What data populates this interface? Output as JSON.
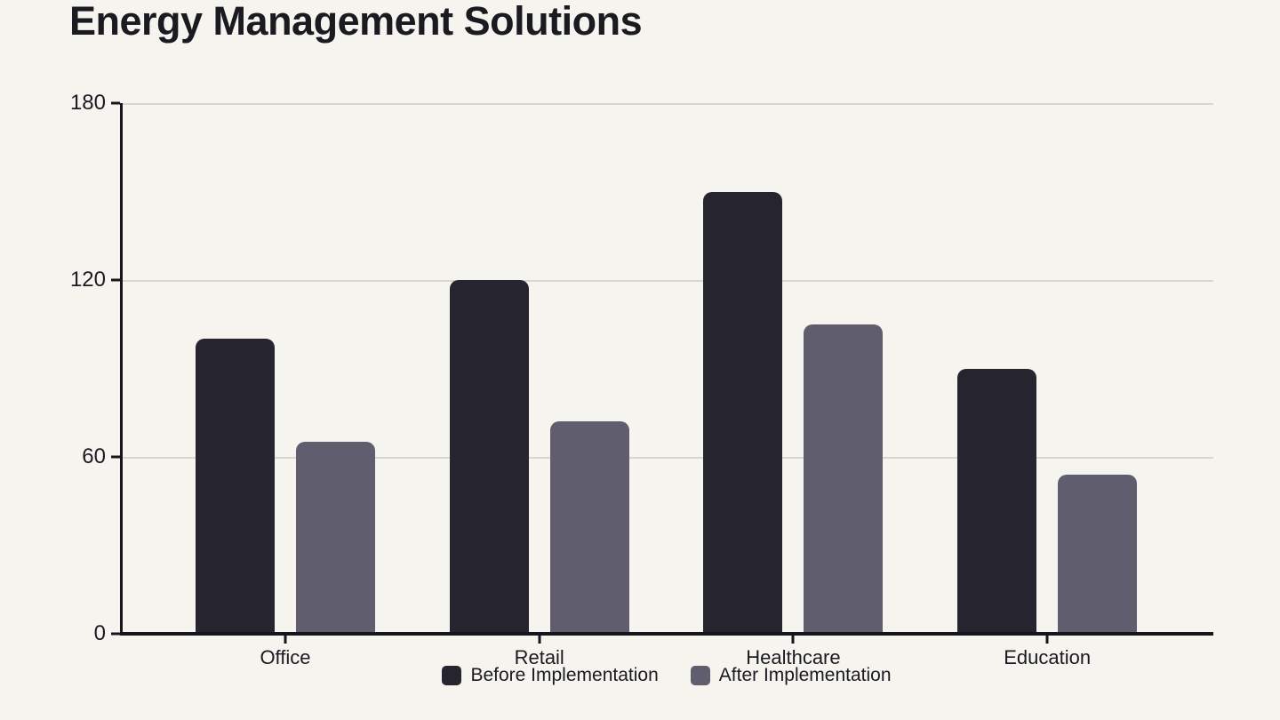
{
  "header": {
    "title": "Energy Management Solutions"
  },
  "colors": {
    "background": "#f6f4ee",
    "axis": "#16151c",
    "gridline": "#d8d6d0",
    "text": "#1b1a21"
  },
  "chart_data": {
    "type": "bar",
    "title": "Energy Management Solutions",
    "categories": [
      "Office",
      "Retail",
      "Healthcare",
      "Education"
    ],
    "series": [
      {
        "name": "Before Implementation",
        "color": "#26252f",
        "values": [
          100,
          120,
          150,
          90
        ]
      },
      {
        "name": "After Implementation",
        "color": "#605d6e",
        "values": [
          65,
          72,
          105,
          54
        ]
      }
    ],
    "ylim": [
      0,
      180
    ],
    "yticks": [
      0,
      60,
      120,
      180
    ],
    "grid": true,
    "legend_position": "bottom",
    "xlabel": "",
    "ylabel": ""
  }
}
